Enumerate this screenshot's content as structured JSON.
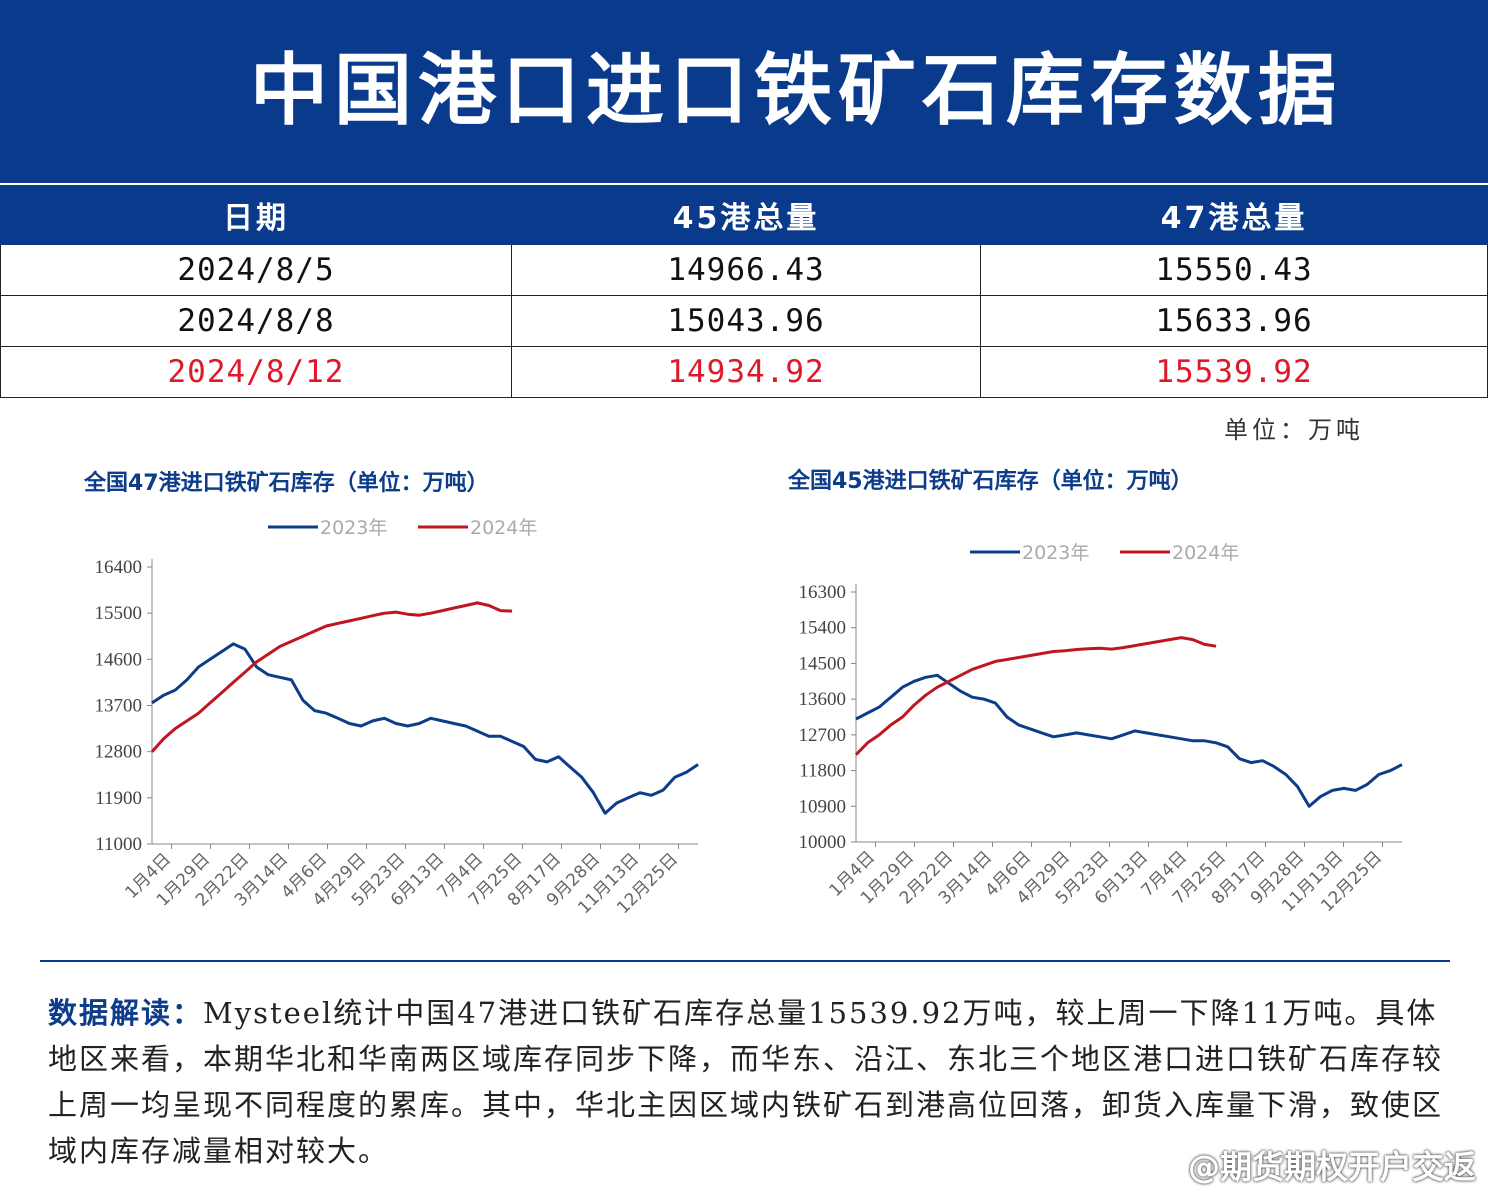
{
  "header": {
    "title": "中国港口进口铁矿石库存数据"
  },
  "table": {
    "columns": [
      "日期",
      "45港总量",
      "47港总量"
    ],
    "rows": [
      {
        "date": "2024/8/5",
        "p45": "14966.43",
        "p47": "15550.43"
      },
      {
        "date": "2024/8/8",
        "p45": "15043.96",
        "p47": "15633.96"
      },
      {
        "date": "2024/8/12",
        "p45": "14934.92",
        "p47": "15539.92"
      }
    ],
    "highlight_color": "#e0192a"
  },
  "unit_label": "单位：万吨",
  "colors": {
    "series_2023": "#0c3c8a",
    "series_2024": "#c0161f",
    "banner": "#0a3a8c"
  },
  "chart_data": [
    {
      "type": "line",
      "title": "全国47港进口铁矿石库存（单位：万吨）",
      "ylim": [
        11000,
        16400
      ],
      "yticks": [
        11000,
        11900,
        12800,
        13700,
        14600,
        15500,
        16400
      ],
      "xticks": [
        "1月4日",
        "1月29日",
        "2月22日",
        "3月14日",
        "4月6日",
        "4月29日",
        "5月23日",
        "6月13日",
        "7月4日",
        "7月25日",
        "8月17日",
        "9月28日",
        "11月13日",
        "12月25日"
      ],
      "legend": "top-center",
      "series": [
        {
          "name": "2023年",
          "values": [
            13750,
            13900,
            14000,
            14200,
            14450,
            14600,
            14750,
            14900,
            14800,
            14450,
            14300,
            14250,
            14200,
            13800,
            13600,
            13550,
            13450,
            13350,
            13300,
            13400,
            13450,
            13350,
            13300,
            13350,
            13450,
            13400,
            13350,
            13300,
            13200,
            13100,
            13100,
            13000,
            12900,
            12650,
            12600,
            12700,
            12500,
            12300,
            12000,
            11600,
            11800,
            11900,
            12000,
            11950,
            12050,
            12300,
            12400,
            12550
          ]
        },
        {
          "name": "2024年",
          "values": [
            12800,
            13050,
            13250,
            13400,
            13550,
            13750,
            13950,
            14150,
            14350,
            14550,
            14700,
            14850,
            14950,
            15050,
            15150,
            15250,
            15300,
            15350,
            15400,
            15450,
            15500,
            15520,
            15480,
            15460,
            15500,
            15550,
            15600,
            15650,
            15700,
            15650,
            15550,
            15540
          ]
        }
      ]
    },
    {
      "type": "line",
      "title": "全国45港进口铁矿石库存（单位：万吨）",
      "ylim": [
        10000,
        16300
      ],
      "yticks": [
        10000,
        10900,
        11800,
        12700,
        13600,
        14500,
        15400,
        16300
      ],
      "xticks": [
        "1月4日",
        "1月29日",
        "2月22日",
        "3月14日",
        "4月6日",
        "4月29日",
        "5月23日",
        "6月13日",
        "7月4日",
        "7月25日",
        "8月17日",
        "9月28日",
        "11月13日",
        "12月25日"
      ],
      "legend": "top-center",
      "series": [
        {
          "name": "2023年",
          "values": [
            13100,
            13250,
            13400,
            13650,
            13900,
            14050,
            14150,
            14200,
            14000,
            13800,
            13650,
            13600,
            13500,
            13150,
            12950,
            12850,
            12750,
            12650,
            12700,
            12750,
            12700,
            12650,
            12600,
            12700,
            12800,
            12750,
            12700,
            12650,
            12600,
            12550,
            12550,
            12500,
            12400,
            12100,
            12000,
            12050,
            11900,
            11700,
            11400,
            10900,
            11150,
            11300,
            11350,
            11300,
            11450,
            11700,
            11800,
            11950
          ]
        },
        {
          "name": "2024年",
          "values": [
            12200,
            12500,
            12700,
            12950,
            13150,
            13450,
            13700,
            13900,
            14050,
            14200,
            14350,
            14450,
            14550,
            14600,
            14650,
            14700,
            14750,
            14800,
            14820,
            14850,
            14870,
            14880,
            14860,
            14900,
            14950,
            15000,
            15050,
            15100,
            15150,
            15100,
            14980,
            14935
          ]
        }
      ]
    }
  ],
  "reading": {
    "lead": "数据解读：",
    "text": "Mysteel统计中国47港进口铁矿石库存总量15539.92万吨，较上周一下降11万吨。具体地区来看，本期华北和华南两区域库存同步下降，而华东、沿江、东北三个地区港口进口铁矿石库存较上周一均呈现不同程度的累库。其中，华北主因区域内铁矿石到港高位回落，卸货入库量下滑，致使区域内库存减量相对较大。"
  },
  "watermark": "@期货期权开户交返"
}
